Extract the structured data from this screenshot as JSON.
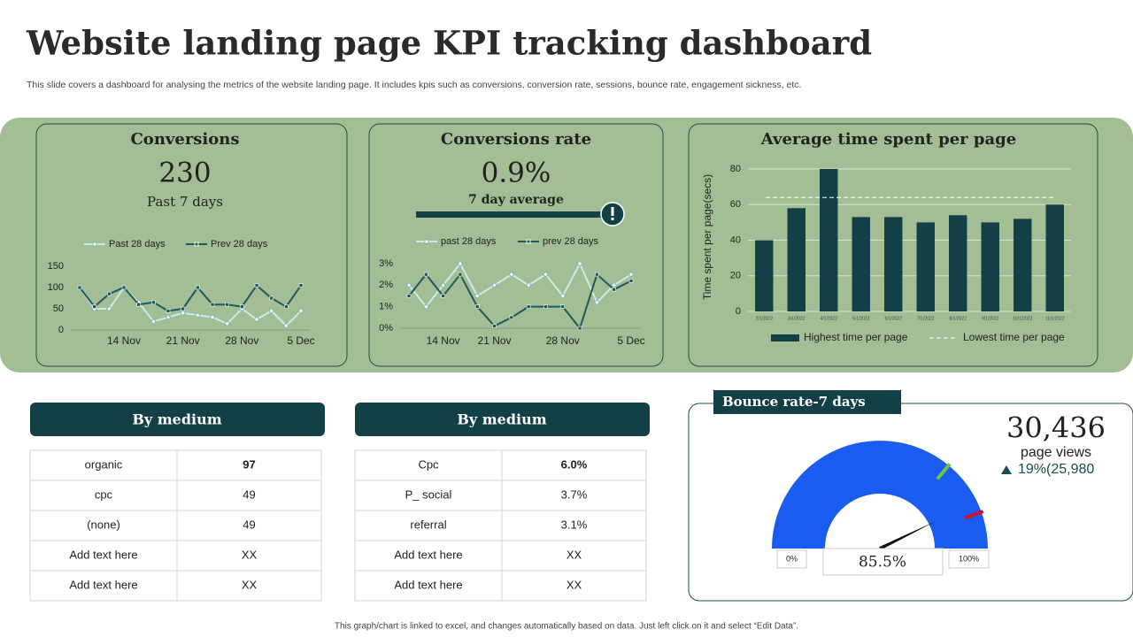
{
  "header": {
    "title": "Website landing page KPI tracking dashboard",
    "subtitle": "This slide covers a dashboard for analysing the metrics of the website landing page. It includes kpis such as conversions, conversion rate, sessions, bounce rate, engagement sickness, etc."
  },
  "chart_data": [
    {
      "type": "line",
      "title": "Conversions",
      "kpi": "230",
      "kpi_note": "Past 7 days",
      "categories": [
        null,
        null,
        null,
        "14 Nov",
        null,
        null,
        null,
        "21 Nov",
        null,
        null,
        null,
        "28 Nov",
        null,
        null,
        null,
        "5 Dec"
      ],
      "series": [
        {
          "name": "Past 28 days",
          "color": "#c9ece6",
          "values": [
            100,
            50,
            50,
            100,
            65,
            20,
            30,
            40,
            35,
            30,
            15,
            50,
            25,
            45,
            10,
            45
          ]
        },
        {
          "name": "Prev 28 days",
          "color": "#1d5a5c",
          "values": [
            100,
            55,
            85,
            100,
            60,
            65,
            45,
            50,
            100,
            60,
            60,
            55,
            105,
            75,
            55,
            105
          ]
        }
      ],
      "ylim": [
        0,
        150
      ],
      "yticks": [
        0,
        50,
        100,
        150
      ],
      "grid": false
    },
    {
      "type": "line",
      "title": "Conversions rate",
      "kpi": "0.9%",
      "kpi_note": "7 day average",
      "categories": [
        null,
        null,
        "14 Nov",
        null,
        null,
        "21 Nov",
        null,
        null,
        null,
        "28 Nov",
        null,
        null,
        null,
        "5 Dec"
      ],
      "series": [
        {
          "name": "past 28 days",
          "color": "#c9ece6",
          "values": [
            2.0,
            1.0,
            2.0,
            3.0,
            1.5,
            2.0,
            2.5,
            2.0,
            2.5,
            1.5,
            3.0,
            1.2,
            2.0,
            2.5
          ]
        },
        {
          "name": "prev 28 days",
          "color": "#1d5a5c",
          "values": [
            1.5,
            2.5,
            1.5,
            2.5,
            1.0,
            0.1,
            0.5,
            1.0,
            1.0,
            1.0,
            0.0,
            2.5,
            1.8,
            2.2
          ]
        }
      ],
      "ylim": [
        0,
        3
      ],
      "yticks": [
        {
          "value": 0,
          "label": "0%"
        },
        {
          "value": 1,
          "label": "1%"
        },
        {
          "value": 2,
          "label": "2%"
        },
        {
          "value": 3,
          "label": "3%"
        }
      ],
      "grid": false
    },
    {
      "type": "bar",
      "title": "Average time spent per page",
      "y_label": "Time spent per page(secs)",
      "categories": [
        "2/1/2022",
        "3/1/2022",
        "4/1/2022",
        "5/1/2022",
        "6/1/2022",
        "7/1/2022",
        "8/1/2022",
        "9/1/2022",
        "10/1/2022",
        "11/1/2022"
      ],
      "series": [
        {
          "name": "Highest time per page",
          "color": "#133f47",
          "values": [
            40,
            58,
            80,
            53,
            53,
            50,
            54,
            50,
            52,
            60
          ]
        }
      ],
      "reference_line": {
        "name": "Lowest time per page",
        "color": "#ffffff",
        "value": 64
      },
      "ylim": [
        0,
        80
      ],
      "yticks": [
        0,
        20,
        40,
        60,
        80
      ],
      "grid": true
    },
    {
      "type": "gauge",
      "title": "Bounce rate-7 days",
      "value": 85.5,
      "value_label": "85.5%",
      "color": "#1a5cf0",
      "lim": [
        0,
        100
      ],
      "ticks": [
        {
          "value": 0,
          "label": "0%"
        },
        {
          "value": 100,
          "label": "100%"
        }
      ]
    }
  ],
  "kpi": {
    "value": "30,436",
    "label": "page views",
    "change": "19%(25,980"
  },
  "tables": [
    {
      "title": "By medium",
      "rows": [
        [
          "organic",
          "97"
        ],
        [
          "cpc",
          "49"
        ],
        [
          "(none)",
          "49"
        ],
        [
          "Add text here",
          "XX"
        ],
        [
          "Add text here",
          "XX"
        ]
      ]
    },
    {
      "title": "By medium",
      "rows": [
        [
          "Cpc",
          "6.0%"
        ],
        [
          "P_ social",
          "3.7%"
        ],
        [
          "referral",
          "3.1%"
        ],
        [
          "Add text here",
          "XX"
        ],
        [
          "Add text here",
          "XX"
        ]
      ]
    }
  ],
  "footer": "This graph/chart is linked to excel, and changes automatically based on data. Just left click on it and select “Edit Data”."
}
